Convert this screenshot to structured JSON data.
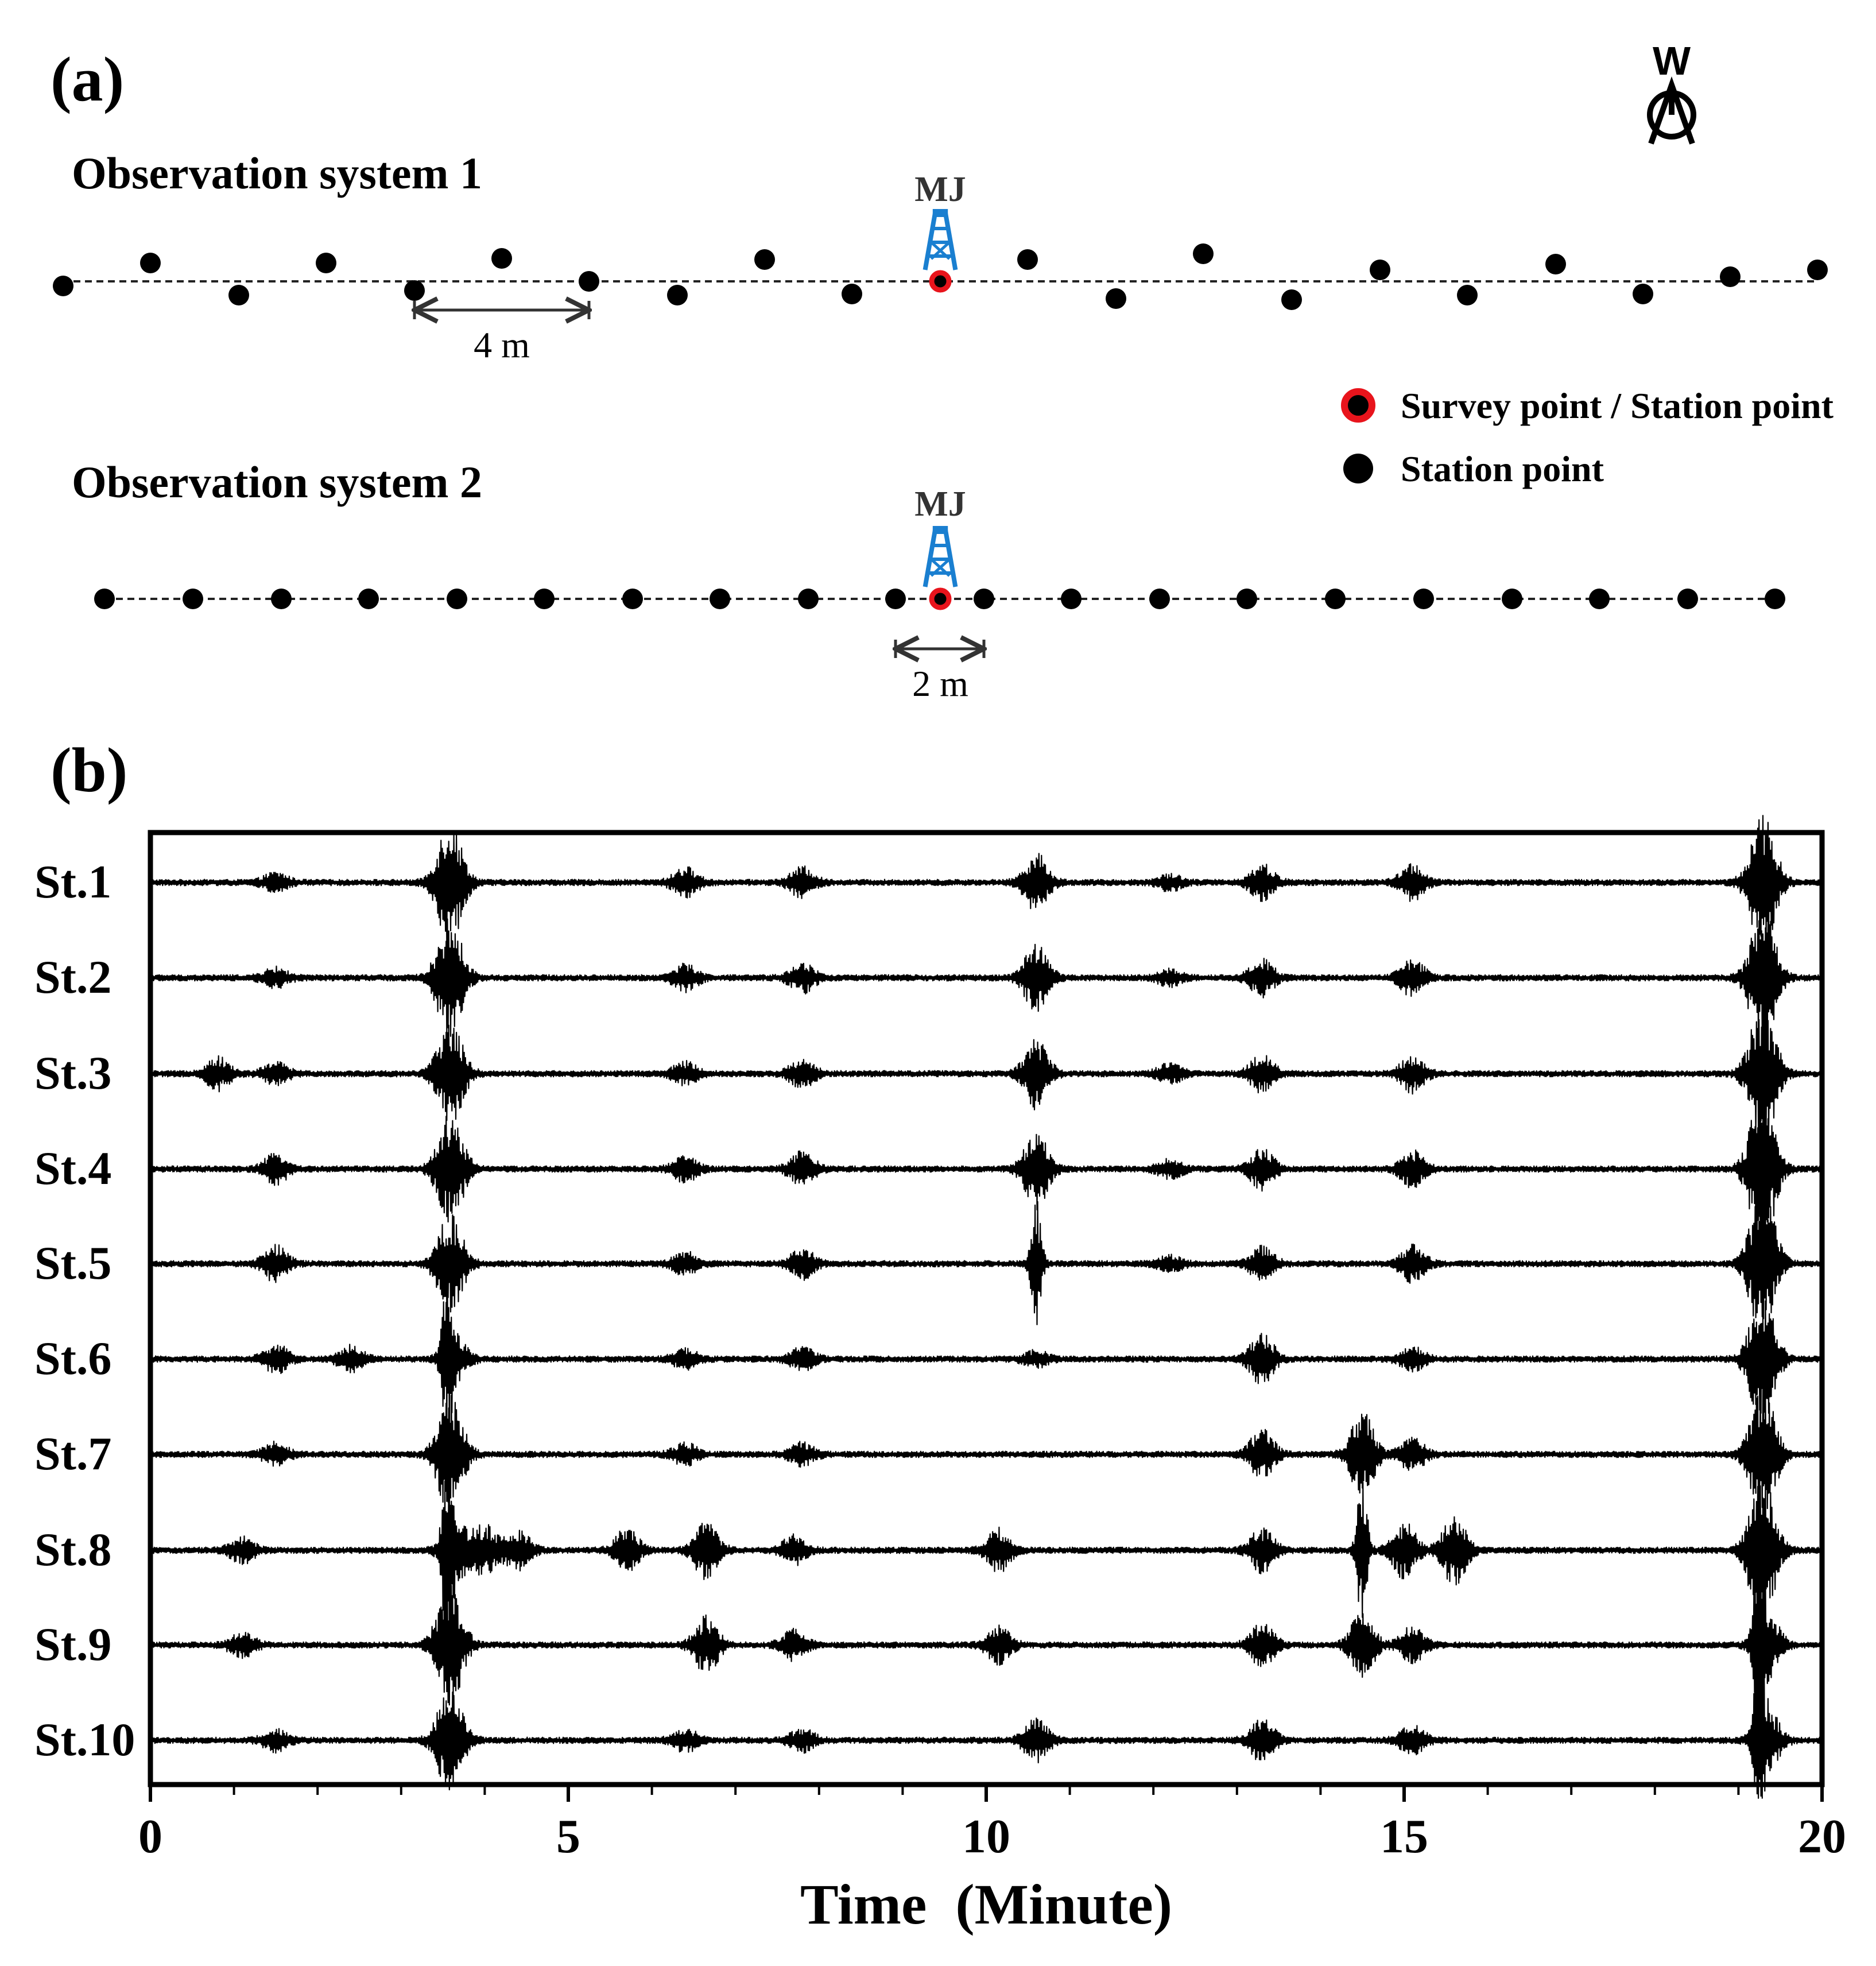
{
  "panel_a": {
    "label": "(a)",
    "compass_letter": "W",
    "system1": {
      "title": "Observation system 1",
      "well_label": "MJ",
      "scale_label": "4 m"
    },
    "system2": {
      "title": "Observation system 2",
      "well_label": "MJ",
      "scale_label": "2 m"
    },
    "legend": {
      "survey_label": "Survey point / Station point",
      "station_label": "Station point"
    },
    "colors": {
      "survey_ring": "#e8141c",
      "well_icon": "#1a7fd0",
      "station": "#000000"
    }
  },
  "panel_b": {
    "label": "(b)"
  },
  "chart_data": {
    "type": "line",
    "title": "",
    "xlabel": "Time  (Minute)",
    "ylabel": "",
    "xlim": [
      0,
      20
    ],
    "x_ticks": [
      0,
      5,
      10,
      15,
      20
    ],
    "x_tick_labels": [
      "0",
      "5",
      "10",
      "15",
      "20"
    ],
    "minor_tick_step": 1,
    "grid": false,
    "series": [
      {
        "name": "St.1",
        "events": [
          [
            1.5,
            0.25
          ],
          [
            3.55,
            1.3
          ],
          [
            3.65,
            0.6
          ],
          [
            6.4,
            0.4
          ],
          [
            7.8,
            0.4
          ],
          [
            10.6,
            0.8
          ],
          [
            12.2,
            0.2
          ],
          [
            13.3,
            0.5
          ],
          [
            15.1,
            0.5
          ],
          [
            19.25,
            1.3
          ],
          [
            19.35,
            0.9
          ]
        ]
      },
      {
        "name": "St.2",
        "events": [
          [
            1.5,
            0.25
          ],
          [
            3.55,
            1.2
          ],
          [
            3.65,
            0.6
          ],
          [
            6.4,
            0.35
          ],
          [
            7.8,
            0.4
          ],
          [
            10.6,
            1.0
          ],
          [
            12.2,
            0.2
          ],
          [
            13.3,
            0.5
          ],
          [
            15.1,
            0.5
          ],
          [
            19.25,
            1.3
          ],
          [
            19.35,
            0.9
          ]
        ]
      },
      {
        "name": "St.3",
        "events": [
          [
            0.8,
            0.45
          ],
          [
            1.5,
            0.3
          ],
          [
            3.55,
            1.0
          ],
          [
            3.65,
            0.6
          ],
          [
            6.4,
            0.3
          ],
          [
            7.8,
            0.4
          ],
          [
            10.6,
            1.0
          ],
          [
            12.2,
            0.25
          ],
          [
            13.3,
            0.5
          ],
          [
            15.1,
            0.5
          ],
          [
            19.25,
            1.4
          ],
          [
            19.35,
            0.9
          ]
        ]
      },
      {
        "name": "St.4",
        "events": [
          [
            1.5,
            0.4
          ],
          [
            3.55,
            1.0
          ],
          [
            3.65,
            0.7
          ],
          [
            6.4,
            0.35
          ],
          [
            7.8,
            0.5
          ],
          [
            10.6,
            1.1
          ],
          [
            12.2,
            0.25
          ],
          [
            13.3,
            0.55
          ],
          [
            15.1,
            0.5
          ],
          [
            19.25,
            1.5
          ],
          [
            19.35,
            0.9
          ]
        ]
      },
      {
        "name": "St.5",
        "events": [
          [
            1.5,
            0.5
          ],
          [
            3.55,
            0.9
          ],
          [
            3.65,
            0.6
          ],
          [
            6.4,
            0.3
          ],
          [
            7.8,
            0.4
          ],
          [
            10.6,
            1.9
          ],
          [
            12.2,
            0.2
          ],
          [
            13.3,
            0.45
          ],
          [
            15.1,
            0.5
          ],
          [
            19.25,
            1.4
          ],
          [
            19.35,
            0.9
          ]
        ]
      },
      {
        "name": "St.6",
        "events": [
          [
            1.5,
            0.4
          ],
          [
            2.4,
            0.35
          ],
          [
            3.55,
            1.9
          ],
          [
            3.65,
            0.6
          ],
          [
            6.4,
            0.25
          ],
          [
            7.8,
            0.3
          ],
          [
            10.6,
            0.2
          ],
          [
            13.3,
            0.7
          ],
          [
            15.1,
            0.3
          ],
          [
            19.25,
            1.3
          ],
          [
            19.35,
            0.8
          ]
        ]
      },
      {
        "name": "St.7",
        "events": [
          [
            1.5,
            0.3
          ],
          [
            3.55,
            1.2
          ],
          [
            3.65,
            0.6
          ],
          [
            6.4,
            0.3
          ],
          [
            7.8,
            0.3
          ],
          [
            13.3,
            0.7
          ],
          [
            14.5,
            1.2
          ],
          [
            15.1,
            0.45
          ],
          [
            19.25,
            1.2
          ],
          [
            19.35,
            0.8
          ]
        ]
      },
      {
        "name": "St.8",
        "events": [
          [
            1.1,
            0.35
          ],
          [
            3.55,
            2.0
          ],
          [
            3.65,
            1.0
          ],
          [
            4.0,
            0.7
          ],
          [
            4.4,
            0.6
          ],
          [
            5.7,
            0.6
          ],
          [
            6.65,
            0.8
          ],
          [
            7.7,
            0.4
          ],
          [
            10.15,
            0.6
          ],
          [
            13.3,
            0.6
          ],
          [
            14.5,
            2.2
          ],
          [
            15.0,
            0.8
          ],
          [
            15.6,
            1.0
          ],
          [
            19.25,
            1.5
          ],
          [
            19.35,
            0.9
          ]
        ]
      },
      {
        "name": "St.9",
        "events": [
          [
            1.1,
            0.35
          ],
          [
            3.55,
            1.3
          ],
          [
            3.65,
            0.6
          ],
          [
            6.65,
            0.8
          ],
          [
            7.7,
            0.4
          ],
          [
            10.15,
            0.5
          ],
          [
            13.3,
            0.6
          ],
          [
            14.5,
            0.9
          ],
          [
            15.1,
            0.5
          ],
          [
            19.25,
            2.8
          ],
          [
            19.35,
            0.9
          ]
        ]
      },
      {
        "name": "St.10",
        "events": [
          [
            1.5,
            0.3
          ],
          [
            3.55,
            1.0
          ],
          [
            3.65,
            0.6
          ],
          [
            6.4,
            0.3
          ],
          [
            7.8,
            0.3
          ],
          [
            10.6,
            0.6
          ],
          [
            13.3,
            0.6
          ],
          [
            15.1,
            0.4
          ],
          [
            19.25,
            2.3
          ],
          [
            19.35,
            0.9
          ]
        ]
      }
    ]
  }
}
